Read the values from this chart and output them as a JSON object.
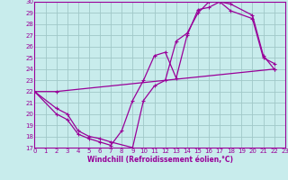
{
  "xlabel": "Windchill (Refroidissement éolien,°C)",
  "bg_color": "#c8ecec",
  "grid_color": "#a0c8c8",
  "line_color": "#990099",
  "xlim": [
    0,
    23
  ],
  "ylim": [
    17,
    30
  ],
  "xticks": [
    0,
    1,
    2,
    3,
    4,
    5,
    6,
    7,
    8,
    9,
    10,
    11,
    12,
    13,
    14,
    15,
    16,
    17,
    18,
    19,
    20,
    21,
    22,
    23
  ],
  "yticks": [
    17,
    18,
    19,
    20,
    21,
    22,
    23,
    24,
    25,
    26,
    27,
    28,
    29,
    30
  ],
  "line1_x": [
    0,
    2,
    22
  ],
  "line1_y": [
    22,
    22,
    24
  ],
  "line2_x": [
    0,
    2,
    3,
    4,
    5,
    6,
    7,
    8,
    9,
    10,
    11,
    12,
    13,
    14,
    15,
    16,
    17,
    18,
    20,
    21,
    22
  ],
  "line2_y": [
    22,
    20,
    19.5,
    18.2,
    17.8,
    17.5,
    17.2,
    18.5,
    21.2,
    23.0,
    25.2,
    25.5,
    23.2,
    27.0,
    29.3,
    29.5,
    30.0,
    29.8,
    28.8,
    25.2,
    24.0
  ],
  "line3_x": [
    0,
    2,
    3,
    4,
    5,
    6,
    7,
    9,
    10,
    11,
    12,
    13,
    14,
    15,
    16,
    17,
    18,
    20,
    21,
    22
  ],
  "line3_y": [
    22,
    20.5,
    20.0,
    18.5,
    18.0,
    17.8,
    17.5,
    17.0,
    21.2,
    22.5,
    23.0,
    26.5,
    27.2,
    29.0,
    30.0,
    30.0,
    29.2,
    28.5,
    25.0,
    24.5
  ]
}
